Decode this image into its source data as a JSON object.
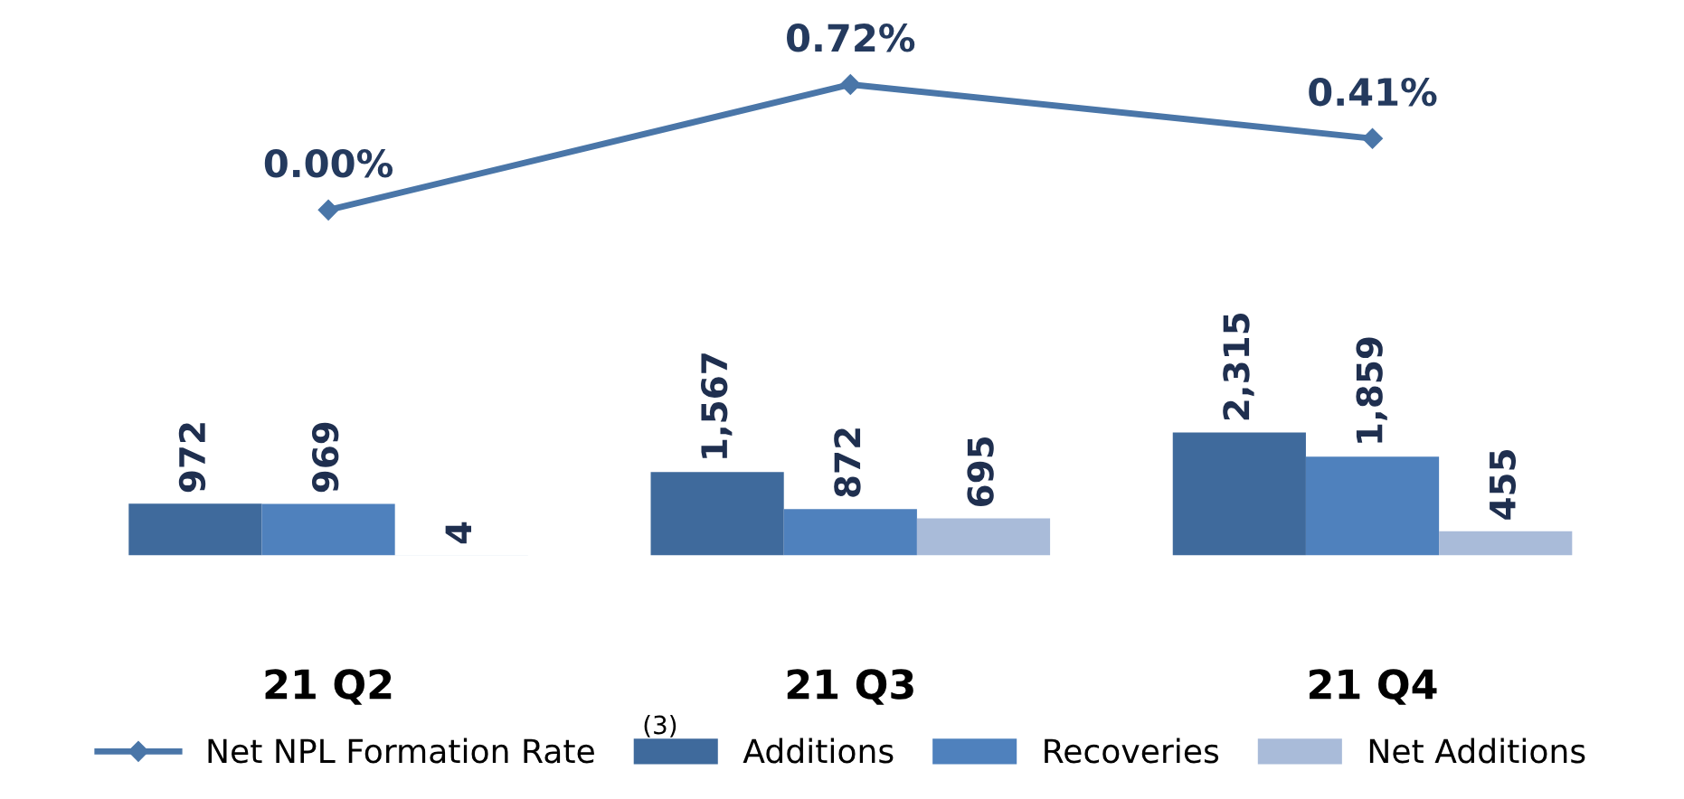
{
  "chart_data": [
    {
      "type": "line",
      "categories": [
        null,
        null,
        null
      ],
      "tick_labels": false,
      "marker": "diamond",
      "series": [
        {
          "name": "Net NPL Formation Rate",
          "color": "#4a76a8",
          "values": [
            0.0,
            0.72,
            0.41
          ],
          "value_labels": [
            "0.00%",
            "0.72%",
            "0.41%"
          ]
        }
      ]
    },
    {
      "type": "bar",
      "categories": [
        "21 Q2",
        "21 Q3",
        "21 Q4"
      ],
      "tick_labels": "x",
      "legend": "bottom",
      "series": [
        {
          "name": "Additions",
          "color": "#3f6a9c",
          "values": [
            972,
            1567,
            2315
          ],
          "value_labels": [
            "972",
            "1,567",
            "2,315"
          ]
        },
        {
          "name": "Recoveries",
          "color": "#4f81bd",
          "values": [
            969,
            872,
            1859
          ],
          "value_labels": [
            "969",
            "872",
            "1,859"
          ]
        },
        {
          "name": "Net Additions",
          "color": "#a9bbd9",
          "values": [
            4,
            695,
            455
          ],
          "value_labels": [
            "4",
            "695",
            "455"
          ]
        }
      ],
      "annotations": [
        "(3)"
      ]
    }
  ]
}
